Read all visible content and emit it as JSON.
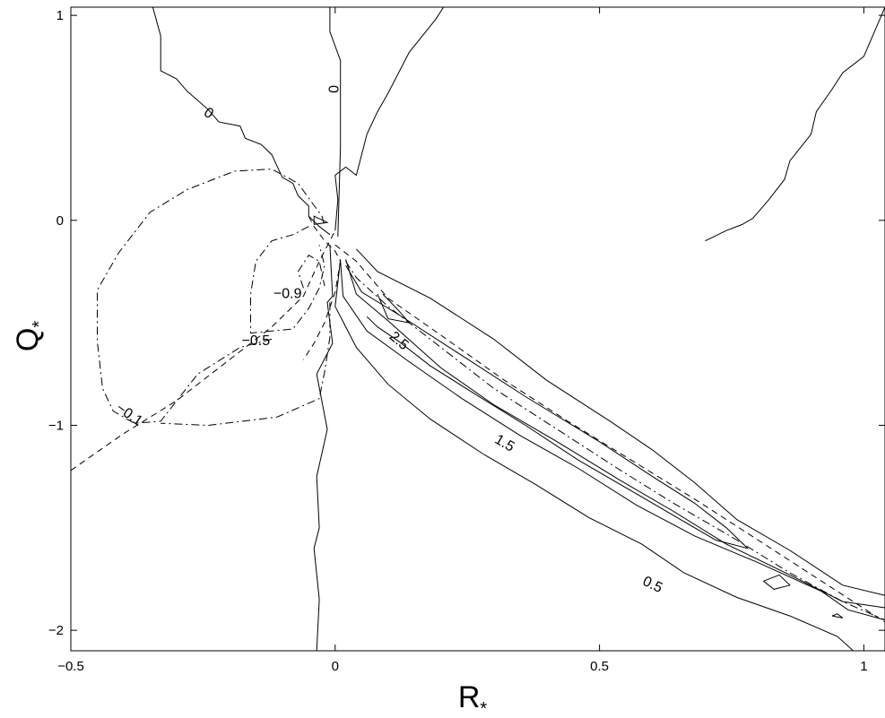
{
  "chart_data": {
    "type": "contour",
    "title": "",
    "xlabel": "R",
    "xlabel_sub": "*",
    "ylabel": "Q",
    "ylabel_sub": "*",
    "xlim": [
      -0.5,
      1.04
    ],
    "ylim": [
      -2.1,
      1.04
    ],
    "xticks": [
      -0.5,
      0,
      0.5,
      1
    ],
    "xtick_labels": [
      "−0.5",
      "0",
      "0.5",
      "1"
    ],
    "yticks": [
      1,
      0,
      -1,
      -2
    ],
    "ytick_labels": [
      "1",
      "0",
      "−1",
      "−2"
    ],
    "grid": false,
    "legend": "none",
    "contour_labels": [
      {
        "text": "0",
        "x": -0.24,
        "y": 0.52,
        "rot": 35
      },
      {
        "text": "0",
        "x": -0.005,
        "y": 0.64,
        "rot": 90
      },
      {
        "text": "−0.9",
        "x": -0.09,
        "y": -0.36,
        "rot": 0
      },
      {
        "text": "−0.5",
        "x": -0.15,
        "y": -0.59,
        "rot": 0
      },
      {
        "text": "−0.1",
        "x": -0.39,
        "y": -0.95,
        "rot": 35
      },
      {
        "text": "2.5",
        "x": 0.12,
        "y": -0.59,
        "rot": 40
      },
      {
        "text": "1.5",
        "x": 0.32,
        "y": -1.09,
        "rot": 30
      },
      {
        "text": "0.5",
        "x": 0.6,
        "y": -1.78,
        "rot": 25
      }
    ],
    "lines": [
      {
        "style": "solid",
        "points": [
          [
            -0.345,
            1.04
          ],
          [
            -0.33,
            0.9
          ],
          [
            -0.33,
            0.73
          ],
          [
            -0.3,
            0.69
          ],
          [
            -0.28,
            0.63
          ],
          [
            -0.24,
            0.54
          ],
          [
            -0.22,
            0.48
          ],
          [
            -0.18,
            0.46
          ],
          [
            -0.17,
            0.4
          ],
          [
            -0.14,
            0.37
          ],
          [
            -0.12,
            0.32
          ],
          [
            -0.1,
            0.21
          ],
          [
            -0.08,
            0.18
          ],
          [
            -0.07,
            0.12
          ],
          [
            -0.05,
            0.07
          ],
          [
            -0.05,
            0.02
          ],
          [
            -0.03,
            -0.03
          ],
          [
            -0.01,
            -0.07
          ]
        ]
      },
      {
        "style": "solid",
        "points": [
          [
            -0.01,
            -0.12
          ],
          [
            -0.005,
            -0.37
          ],
          [
            -0.015,
            -0.4
          ],
          [
            -0.005,
            -0.6
          ],
          [
            -0.035,
            -0.75
          ],
          [
            -0.015,
            -1.02
          ],
          [
            -0.035,
            -1.25
          ],
          [
            -0.03,
            -1.5
          ],
          [
            -0.04,
            -1.6
          ],
          [
            -0.03,
            -1.85
          ],
          [
            -0.035,
            -2.1
          ]
        ]
      },
      {
        "style": "solid",
        "points": [
          [
            0.005,
            -0.08
          ],
          [
            0.01,
            0.36
          ],
          [
            0.01,
            0.78
          ],
          [
            -0.01,
            0.92
          ],
          [
            -0.01,
            1.04
          ]
        ]
      },
      {
        "style": "solid",
        "points": [
          [
            0.205,
            1.04
          ],
          [
            0.19,
            0.98
          ],
          [
            0.14,
            0.82
          ],
          [
            0.1,
            0.62
          ],
          [
            0.08,
            0.53
          ],
          [
            0.06,
            0.42
          ],
          [
            0.04,
            0.22
          ],
          [
            0.02,
            0.26
          ],
          [
            0.0,
            0.22
          ],
          [
            0.005,
            0.1
          ],
          [
            0.0,
            -0.05
          ]
        ]
      },
      {
        "style": "solid",
        "points": [
          [
            1.04,
            1.04
          ],
          [
            1.0,
            0.8
          ],
          [
            0.96,
            0.72
          ],
          [
            0.94,
            0.64
          ],
          [
            0.91,
            0.53
          ],
          [
            0.9,
            0.42
          ],
          [
            0.86,
            0.29
          ],
          [
            0.85,
            0.2
          ],
          [
            0.82,
            0.1
          ],
          [
            0.8,
            0.04
          ],
          [
            0.79,
            0.01
          ],
          [
            0.77,
            -0.02
          ],
          [
            0.74,
            -0.05
          ],
          [
            0.7,
            -0.1
          ]
        ]
      },
      {
        "style": "solid",
        "points": [
          [
            0.04,
            -0.14
          ],
          [
            0.08,
            -0.25
          ],
          [
            0.18,
            -0.38
          ],
          [
            0.3,
            -0.58
          ],
          [
            0.4,
            -0.78
          ],
          [
            0.52,
            -0.98
          ],
          [
            0.6,
            -1.12
          ],
          [
            0.68,
            -1.28
          ],
          [
            0.76,
            -1.46
          ],
          [
            0.86,
            -1.61
          ],
          [
            0.96,
            -1.78
          ],
          [
            1.04,
            -1.83
          ]
        ]
      },
      {
        "style": "solid",
        "points": [
          [
            0.01,
            -0.19
          ],
          [
            0.0,
            -0.42
          ],
          [
            0.04,
            -0.62
          ],
          [
            0.1,
            -0.8
          ],
          [
            0.18,
            -0.97
          ],
          [
            0.28,
            -1.14
          ],
          [
            0.38,
            -1.29
          ],
          [
            0.48,
            -1.45
          ],
          [
            0.58,
            -1.58
          ],
          [
            0.66,
            -1.72
          ],
          [
            0.76,
            -1.84
          ],
          [
            0.86,
            -1.93
          ],
          [
            0.95,
            -2.03
          ],
          [
            0.98,
            -2.1
          ]
        ]
      },
      {
        "style": "solid",
        "points": [
          [
            0.02,
            -0.19
          ],
          [
            0.04,
            -0.36
          ],
          [
            0.1,
            -0.49
          ],
          [
            0.2,
            -0.72
          ],
          [
            0.3,
            -0.9
          ],
          [
            0.42,
            -1.08
          ],
          [
            0.54,
            -1.27
          ],
          [
            0.64,
            -1.42
          ],
          [
            0.74,
            -1.58
          ],
          [
            0.86,
            -1.73
          ],
          [
            0.96,
            -1.86
          ],
          [
            1.04,
            -1.89
          ]
        ]
      },
      {
        "style": "solid",
        "points": [
          [
            0.01,
            -0.2
          ],
          [
            0.015,
            -0.37
          ],
          [
            0.06,
            -0.54
          ],
          [
            0.14,
            -0.69
          ],
          [
            0.24,
            -0.87
          ],
          [
            0.35,
            -1.05
          ],
          [
            0.46,
            -1.21
          ],
          [
            0.57,
            -1.39
          ],
          [
            0.68,
            -1.54
          ],
          [
            0.8,
            -1.67
          ],
          [
            0.92,
            -1.81
          ],
          [
            0.97,
            -1.9
          ],
          [
            1.04,
            -1.95
          ]
        ]
      },
      {
        "style": "solid",
        "points": [
          [
            0.02,
            -0.22
          ],
          [
            0.05,
            -0.35
          ],
          [
            0.12,
            -0.46
          ],
          [
            0.24,
            -0.66
          ],
          [
            0.36,
            -0.86
          ],
          [
            0.5,
            -1.08
          ],
          [
            0.6,
            -1.25
          ],
          [
            0.68,
            -1.38
          ],
          [
            0.74,
            -1.5
          ],
          [
            0.78,
            -1.6
          ],
          [
            0.72,
            -1.56
          ],
          [
            0.64,
            -1.44
          ],
          [
            0.56,
            -1.32
          ],
          [
            0.46,
            -1.17
          ],
          [
            0.36,
            -1.0
          ],
          [
            0.26,
            -0.84
          ],
          [
            0.18,
            -0.71
          ],
          [
            0.12,
            -0.59
          ],
          [
            0.08,
            -0.52
          ],
          [
            0.06,
            -0.47
          ]
        ]
      },
      {
        "style": "solid",
        "points": [
          [
            0.08,
            -0.36
          ],
          [
            0.1,
            -0.48
          ],
          [
            0.14,
            -0.5
          ],
          [
            0.12,
            -0.44
          ],
          [
            0.09,
            -0.36
          ]
        ]
      },
      {
        "style": "solid",
        "points": [
          [
            0.81,
            -1.76
          ],
          [
            0.84,
            -1.73
          ],
          [
            0.86,
            -1.78
          ],
          [
            0.83,
            -1.8
          ],
          [
            0.81,
            -1.76
          ]
        ]
      },
      {
        "style": "solid",
        "points": [
          [
            0.94,
            -1.93
          ],
          [
            0.95,
            -1.92
          ],
          [
            0.96,
            -1.94
          ],
          [
            0.94,
            -1.93
          ]
        ]
      },
      {
        "style": "solid",
        "points": [
          [
            -0.04,
            -0.02
          ],
          [
            -0.015,
            -0.01
          ],
          [
            -0.04,
            0.02
          ],
          [
            -0.04,
            -0.02
          ]
        ]
      },
      {
        "style": "dashed",
        "points": [
          [
            -0.5,
            -1.22
          ],
          [
            -0.4,
            -1.04
          ],
          [
            -0.3,
            -0.88
          ],
          [
            -0.2,
            -0.68
          ],
          [
            -0.12,
            -0.52
          ],
          [
            -0.06,
            -0.37
          ],
          [
            -0.03,
            -0.2
          ],
          [
            -0.01,
            -0.1
          ],
          [
            0.0,
            -0.05
          ]
        ]
      },
      {
        "style": "dashed",
        "points": [
          [
            0.0,
            -0.12
          ],
          [
            0.04,
            -0.2
          ],
          [
            0.1,
            -0.38
          ],
          [
            0.2,
            -0.56
          ],
          [
            0.32,
            -0.78
          ],
          [
            0.44,
            -0.98
          ],
          [
            0.56,
            -1.17
          ],
          [
            0.68,
            -1.36
          ],
          [
            0.8,
            -1.56
          ],
          [
            0.92,
            -1.76
          ],
          [
            1.04,
            -1.96
          ]
        ]
      },
      {
        "style": "dashed",
        "points": [
          [
            -0.05,
            0.02
          ],
          [
            -0.04,
            -0.03
          ],
          [
            -0.02,
            -0.1
          ],
          [
            0.0,
            -0.15
          ],
          [
            0.01,
            -0.2
          ],
          [
            0.0,
            -0.35
          ],
          [
            -0.02,
            -0.5
          ],
          [
            -0.04,
            -0.6
          ],
          [
            -0.06,
            -0.68
          ]
        ]
      },
      {
        "style": "dashdot",
        "points": [
          [
            -0.12,
            -0.58
          ],
          [
            -0.18,
            -0.62
          ],
          [
            -0.26,
            -0.75
          ],
          [
            -0.33,
            -0.98
          ],
          [
            -0.38,
            -0.99
          ],
          [
            -0.42,
            -0.93
          ],
          [
            -0.44,
            -0.82
          ],
          [
            -0.45,
            -0.59
          ],
          [
            -0.45,
            -0.34
          ],
          [
            -0.41,
            -0.16
          ],
          [
            -0.35,
            0.04
          ],
          [
            -0.28,
            0.15
          ],
          [
            -0.19,
            0.24
          ],
          [
            -0.12,
            0.25
          ],
          [
            -0.07,
            0.18
          ],
          [
            -0.045,
            0.09
          ],
          [
            -0.025,
            0.02
          ],
          [
            -0.02,
            -0.03
          ]
        ]
      },
      {
        "style": "dashdot",
        "points": [
          [
            -0.05,
            -0.03
          ],
          [
            -0.08,
            -0.07
          ],
          [
            -0.12,
            -0.1
          ],
          [
            -0.15,
            -0.2
          ],
          [
            -0.16,
            -0.36
          ],
          [
            -0.16,
            -0.55
          ],
          [
            -0.08,
            -0.53
          ],
          [
            -0.05,
            -0.43
          ],
          [
            -0.03,
            -0.33
          ],
          [
            -0.02,
            -0.22
          ],
          [
            -0.03,
            -0.12
          ]
        ]
      },
      {
        "style": "dashdot",
        "points": [
          [
            -0.06,
            -0.33
          ],
          [
            -0.07,
            -0.25
          ],
          [
            -0.05,
            -0.17
          ],
          [
            -0.03,
            -0.2
          ],
          [
            -0.02,
            -0.32
          ]
        ]
      },
      {
        "style": "dashdot",
        "points": [
          [
            -0.01,
            -0.4
          ],
          [
            -0.01,
            -0.57
          ],
          [
            -0.02,
            -0.74
          ],
          [
            -0.03,
            -0.87
          ],
          [
            -0.11,
            -0.96
          ],
          [
            -0.24,
            -1.0
          ],
          [
            -0.33,
            -0.99
          ]
        ]
      },
      {
        "style": "dashdot",
        "points": [
          [
            0.02,
            -0.2
          ],
          [
            0.04,
            -0.28
          ],
          [
            0.1,
            -0.42
          ],
          [
            0.2,
            -0.62
          ],
          [
            0.3,
            -0.82
          ],
          [
            0.42,
            -1.02
          ],
          [
            0.54,
            -1.22
          ],
          [
            0.64,
            -1.38
          ],
          [
            0.76,
            -1.56
          ],
          [
            0.86,
            -1.72
          ],
          [
            0.96,
            -1.86
          ],
          [
            1.04,
            -1.95
          ]
        ]
      }
    ]
  }
}
